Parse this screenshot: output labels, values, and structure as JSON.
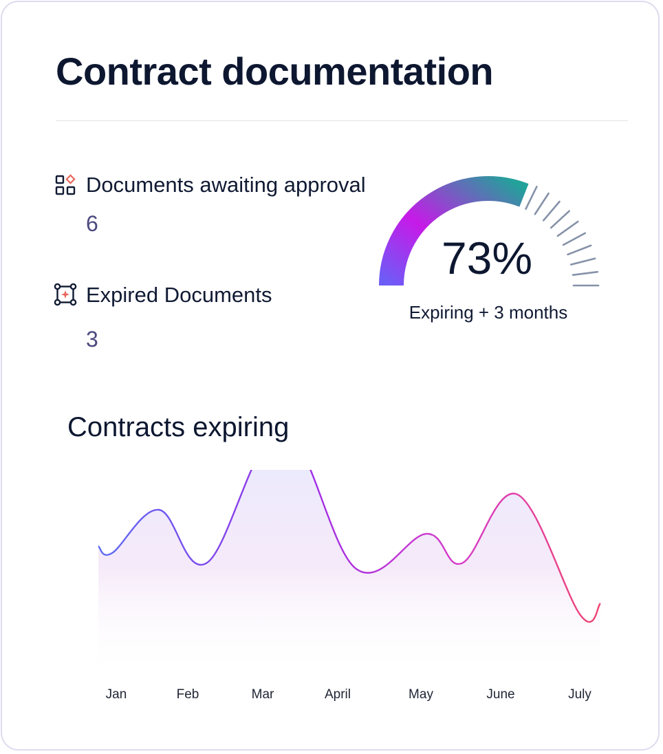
{
  "header": {
    "title": "Contract documentation"
  },
  "stats": [
    {
      "label": "Documents awaiting approval",
      "value": "6",
      "icon": "widgets-diamond-icon"
    },
    {
      "label": "Expired Documents",
      "value": "3",
      "icon": "bounding-box-sparkle-icon"
    }
  ],
  "gauge": {
    "value_text": "73%",
    "percent": 73,
    "caption": "Expiring + 3 months",
    "colors": {
      "start": "#6e5cf7",
      "mid": "#c71ae8",
      "end": "#22a29a",
      "ticks": "#8592a8"
    }
  },
  "section": {
    "title": "Contracts expiring"
  },
  "colors": {
    "icon_stroke": "#101a33",
    "icon_accent": "#e8685c",
    "value_text": "#4c4a7e"
  },
  "chart_data": {
    "type": "area",
    "categories": [
      "Jan",
      "Feb",
      "Mar",
      "April",
      "May",
      "June",
      "July"
    ],
    "values": [
      10,
      9,
      16,
      9,
      10,
      13,
      7
    ],
    "line_colors": [
      "#5b6cf2",
      "#9b2ce6",
      "#d63bc8",
      "#f04470"
    ],
    "grid": false,
    "xlabel": "",
    "ylabel": ""
  }
}
